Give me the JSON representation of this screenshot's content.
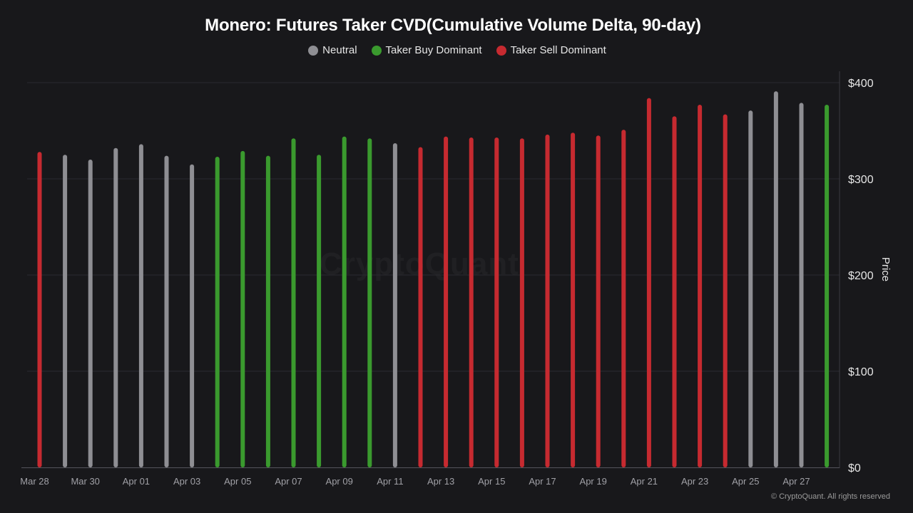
{
  "title": "Monero: Futures Taker CVD(Cumulative Volume Delta, 90-day)",
  "legend": [
    {
      "label": "Neutral",
      "color": "#8e8e93"
    },
    {
      "label": "Taker Buy Dominant",
      "color": "#3a9a2e"
    },
    {
      "label": "Taker Sell Dominant",
      "color": "#c62a30"
    }
  ],
  "watermark": "CryptoQuant",
  "footer": "© CryptoQuant. All rights reserved",
  "chart_data": {
    "type": "bar",
    "ylabel": "Price",
    "ylim": [
      0,
      400
    ],
    "yticks": [
      "$0",
      "$100",
      "$200",
      "$300",
      "$400"
    ],
    "y_axis_position": "right",
    "grid": true,
    "legend_position": "top-center",
    "x_tick_labels": [
      "Mar 28",
      "Mar 30",
      "Apr 01",
      "Apr 03",
      "Apr 05",
      "Apr 07",
      "Apr 09",
      "Apr 11",
      "Apr 13",
      "Apr 15",
      "Apr 17",
      "Apr 19",
      "Apr 21",
      "Apr 23",
      "Apr 25",
      "Apr 27"
    ],
    "colors": {
      "neutral": "#8e8e93",
      "buy": "#3a9a2e",
      "sell": "#c62a30"
    },
    "bars": [
      {
        "date": "Mar 28",
        "value": 328,
        "state": "sell"
      },
      {
        "date": "Mar 29",
        "value": 325,
        "state": "neutral"
      },
      {
        "date": "Mar 30",
        "value": 320,
        "state": "neutral"
      },
      {
        "date": "Mar 31",
        "value": 332,
        "state": "neutral"
      },
      {
        "date": "Apr 01",
        "value": 336,
        "state": "neutral"
      },
      {
        "date": "Apr 02",
        "value": 324,
        "state": "neutral"
      },
      {
        "date": "Apr 03",
        "value": 315,
        "state": "neutral"
      },
      {
        "date": "Apr 04",
        "value": 323,
        "state": "buy"
      },
      {
        "date": "Apr 05",
        "value": 329,
        "state": "buy"
      },
      {
        "date": "Apr 06",
        "value": 324,
        "state": "buy"
      },
      {
        "date": "Apr 07",
        "value": 342,
        "state": "buy"
      },
      {
        "date": "Apr 08",
        "value": 325,
        "state": "buy"
      },
      {
        "date": "Apr 09",
        "value": 344,
        "state": "buy"
      },
      {
        "date": "Apr 10",
        "value": 342,
        "state": "buy"
      },
      {
        "date": "Apr 11",
        "value": 337,
        "state": "neutral"
      },
      {
        "date": "Apr 12",
        "value": 333,
        "state": "sell"
      },
      {
        "date": "Apr 13",
        "value": 344,
        "state": "sell"
      },
      {
        "date": "Apr 14",
        "value": 343,
        "state": "sell"
      },
      {
        "date": "Apr 15",
        "value": 343,
        "state": "sell"
      },
      {
        "date": "Apr 16",
        "value": 342,
        "state": "sell"
      },
      {
        "date": "Apr 17",
        "value": 346,
        "state": "sell"
      },
      {
        "date": "Apr 18",
        "value": 348,
        "state": "sell"
      },
      {
        "date": "Apr 19",
        "value": 345,
        "state": "sell"
      },
      {
        "date": "Apr 20",
        "value": 351,
        "state": "sell"
      },
      {
        "date": "Apr 21",
        "value": 384,
        "state": "sell"
      },
      {
        "date": "Apr 22",
        "value": 365,
        "state": "sell"
      },
      {
        "date": "Apr 23",
        "value": 377,
        "state": "sell"
      },
      {
        "date": "Apr 24",
        "value": 367,
        "state": "sell"
      },
      {
        "date": "Apr 25",
        "value": 371,
        "state": "neutral"
      },
      {
        "date": "Apr 26",
        "value": 391,
        "state": "neutral"
      },
      {
        "date": "Apr 27",
        "value": 379,
        "state": "neutral"
      },
      {
        "date": "Apr 28",
        "value": 377,
        "state": "buy"
      }
    ]
  }
}
